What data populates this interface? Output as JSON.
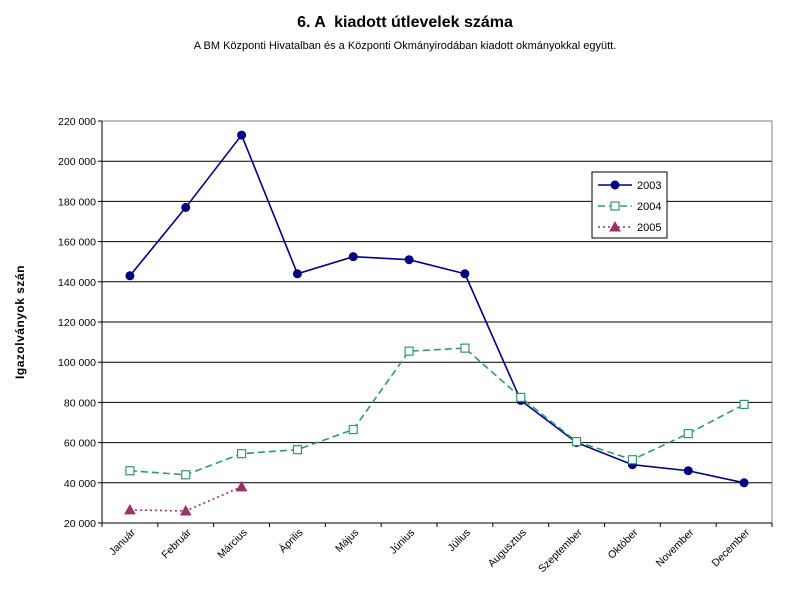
{
  "chart_data": {
    "type": "line",
    "title": "6. A  kiadott útlevelek száma",
    "subtitle": "A BM Központi Hivatalban és a Központi Okmányirodában kiadott okmányokkal együtt.",
    "ylabel": "Igazolványok szán",
    "xlabel": "",
    "ylim": [
      20000,
      220000
    ],
    "ytick_step": 20000,
    "grid": true,
    "legend_position": "top-right",
    "categories": [
      "Január",
      "Február",
      "Március",
      "Április",
      "Május",
      "Június",
      "Július",
      "Augusztus",
      "Szeptember",
      "Október",
      "November",
      "December"
    ],
    "yticks": [
      "20 000",
      "40 000",
      "60 000",
      "80 000",
      "100 000",
      "120 000",
      "140 000",
      "160 000",
      "180 000",
      "200 000",
      "220 000"
    ],
    "series": [
      {
        "name": "2003",
        "color": "#000080",
        "style": "solid",
        "marker": "circle",
        "values": [
          143000,
          177000,
          213000,
          144000,
          152500,
          151000,
          144000,
          81000,
          60000,
          49000,
          46000,
          40000
        ]
      },
      {
        "name": "2004",
        "color": "#339966",
        "style": "dashed",
        "marker": "square",
        "values": [
          46000,
          44000,
          54500,
          56500,
          66500,
          105500,
          107000,
          82500,
          60500,
          51500,
          64500,
          79000
        ]
      },
      {
        "name": "2005",
        "color": "#993366",
        "style": "dotted",
        "marker": "triangle",
        "values": [
          26500,
          26000,
          38000,
          null,
          null,
          null,
          null,
          null,
          null,
          null,
          null,
          null
        ]
      }
    ]
  },
  "colors": {
    "plot_border": "#808080",
    "gridline": "#000000",
    "background": "#ffffff"
  }
}
